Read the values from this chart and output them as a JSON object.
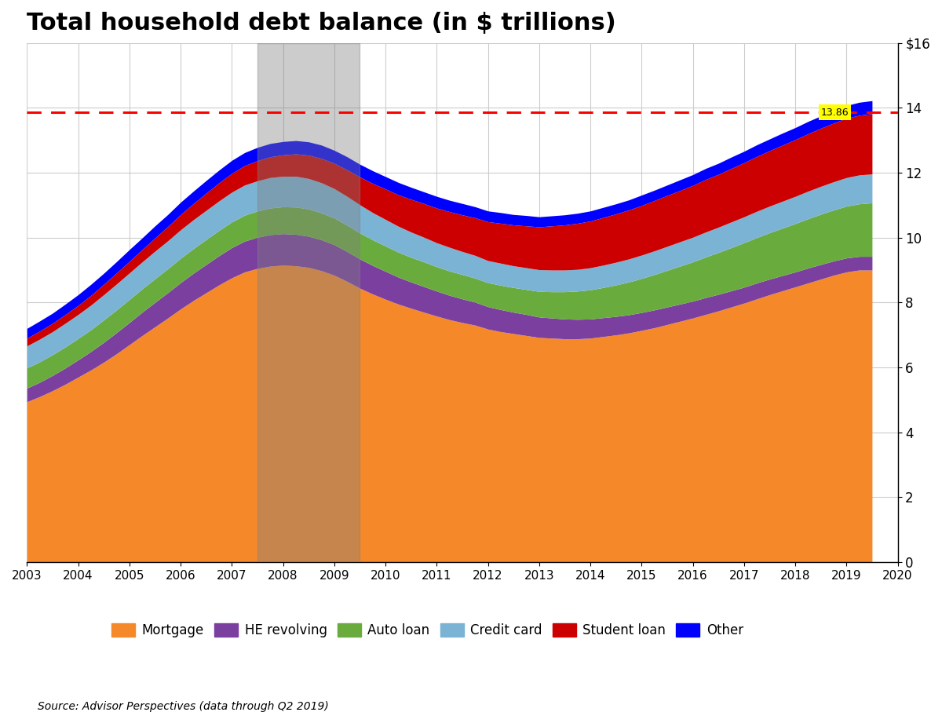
{
  "title": "Total household debt balance (in $ trillions)",
  "source": "Source: Advisor Perspectives (data through Q2 2019)",
  "dashed_line_value": 13.86,
  "dashed_line_label": "13.86",
  "recession_band1": [
    2007.5,
    2009.5
  ],
  "ylim": [
    0,
    16
  ],
  "yticks": [
    0,
    2,
    4,
    6,
    8,
    10,
    12,
    14,
    16
  ],
  "ytick_labels": [
    "0",
    "2",
    "4",
    "6",
    "8",
    "10",
    "12",
    "14",
    "$16"
  ],
  "colors": {
    "Mortgage": "#F5892A",
    "HE revolving": "#7B3FA0",
    "Auto loan": "#6AAB3E",
    "Credit card": "#7BB3D4",
    "Student loan": "#CC0000",
    "Other": "#0000FF"
  },
  "legend_labels": [
    "Mortgage",
    "HE revolving",
    "Auto loan",
    "Credit card",
    "Student loan",
    "Other"
  ],
  "years": [
    2003.0,
    2003.25,
    2003.5,
    2003.75,
    2004.0,
    2004.25,
    2004.5,
    2004.75,
    2005.0,
    2005.25,
    2005.5,
    2005.75,
    2006.0,
    2006.25,
    2006.5,
    2006.75,
    2007.0,
    2007.25,
    2007.5,
    2007.75,
    2008.0,
    2008.25,
    2008.5,
    2008.75,
    2009.0,
    2009.25,
    2009.5,
    2009.75,
    2010.0,
    2010.25,
    2010.5,
    2010.75,
    2011.0,
    2011.25,
    2011.5,
    2011.75,
    2012.0,
    2012.25,
    2012.5,
    2012.75,
    2013.0,
    2013.25,
    2013.5,
    2013.75,
    2014.0,
    2014.25,
    2014.5,
    2014.75,
    2015.0,
    2015.25,
    2015.5,
    2015.75,
    2016.0,
    2016.25,
    2016.5,
    2016.75,
    2017.0,
    2017.25,
    2017.5,
    2017.75,
    2018.0,
    2018.25,
    2018.5,
    2018.75,
    2019.0,
    2019.25,
    2019.5
  ],
  "mortgage": [
    4.94,
    5.1,
    5.28,
    5.48,
    5.7,
    5.92,
    6.16,
    6.42,
    6.7,
    6.98,
    7.25,
    7.52,
    7.8,
    8.06,
    8.3,
    8.54,
    8.76,
    8.94,
    9.05,
    9.12,
    9.15,
    9.13,
    9.08,
    8.98,
    8.84,
    8.65,
    8.44,
    8.26,
    8.1,
    7.95,
    7.82,
    7.7,
    7.58,
    7.47,
    7.38,
    7.3,
    7.18,
    7.1,
    7.04,
    6.98,
    6.92,
    6.9,
    6.88,
    6.88,
    6.9,
    6.95,
    7.0,
    7.06,
    7.14,
    7.22,
    7.32,
    7.42,
    7.52,
    7.63,
    7.74,
    7.86,
    7.98,
    8.11,
    8.24,
    8.36,
    8.48,
    8.6,
    8.72,
    8.84,
    8.94,
    9.0,
    9.0
  ],
  "he_revolving": [
    0.42,
    0.44,
    0.47,
    0.5,
    0.53,
    0.57,
    0.61,
    0.65,
    0.68,
    0.72,
    0.75,
    0.78,
    0.81,
    0.84,
    0.87,
    0.9,
    0.93,
    0.95,
    0.96,
    0.97,
    0.97,
    0.97,
    0.96,
    0.95,
    0.94,
    0.92,
    0.9,
    0.88,
    0.86,
    0.83,
    0.81,
    0.79,
    0.77,
    0.75,
    0.73,
    0.71,
    0.69,
    0.68,
    0.66,
    0.65,
    0.63,
    0.62,
    0.61,
    0.6,
    0.59,
    0.58,
    0.57,
    0.56,
    0.55,
    0.55,
    0.54,
    0.53,
    0.52,
    0.52,
    0.51,
    0.5,
    0.49,
    0.49,
    0.48,
    0.47,
    0.46,
    0.46,
    0.45,
    0.44,
    0.43,
    0.42,
    0.42
  ],
  "auto_loan": [
    0.62,
    0.63,
    0.64,
    0.65,
    0.66,
    0.67,
    0.69,
    0.7,
    0.71,
    0.72,
    0.73,
    0.74,
    0.75,
    0.76,
    0.77,
    0.78,
    0.79,
    0.8,
    0.81,
    0.82,
    0.83,
    0.84,
    0.84,
    0.83,
    0.82,
    0.81,
    0.8,
    0.79,
    0.78,
    0.77,
    0.76,
    0.76,
    0.75,
    0.75,
    0.75,
    0.74,
    0.74,
    0.75,
    0.76,
    0.77,
    0.79,
    0.81,
    0.84,
    0.87,
    0.9,
    0.93,
    0.97,
    1.01,
    1.05,
    1.09,
    1.13,
    1.17,
    1.21,
    1.25,
    1.29,
    1.33,
    1.37,
    1.4,
    1.43,
    1.46,
    1.49,
    1.52,
    1.55,
    1.57,
    1.6,
    1.62,
    1.65
  ],
  "credit_card": [
    0.68,
    0.7,
    0.71,
    0.73,
    0.74,
    0.76,
    0.78,
    0.8,
    0.82,
    0.83,
    0.85,
    0.86,
    0.88,
    0.89,
    0.9,
    0.91,
    0.92,
    0.93,
    0.93,
    0.94,
    0.94,
    0.95,
    0.94,
    0.93,
    0.91,
    0.89,
    0.87,
    0.84,
    0.82,
    0.8,
    0.78,
    0.76,
    0.74,
    0.73,
    0.71,
    0.7,
    0.68,
    0.68,
    0.67,
    0.67,
    0.67,
    0.67,
    0.67,
    0.67,
    0.68,
    0.69,
    0.7,
    0.71,
    0.72,
    0.73,
    0.74,
    0.75,
    0.76,
    0.77,
    0.78,
    0.79,
    0.8,
    0.81,
    0.82,
    0.83,
    0.84,
    0.85,
    0.86,
    0.87,
    0.88,
    0.89,
    0.89
  ],
  "student_loan": [
    0.24,
    0.25,
    0.26,
    0.27,
    0.28,
    0.3,
    0.32,
    0.34,
    0.36,
    0.38,
    0.41,
    0.44,
    0.47,
    0.5,
    0.53,
    0.56,
    0.58,
    0.6,
    0.62,
    0.64,
    0.66,
    0.69,
    0.72,
    0.75,
    0.78,
    0.82,
    0.86,
    0.9,
    0.94,
    0.97,
    1.01,
    1.04,
    1.07,
    1.1,
    1.13,
    1.16,
    1.2,
    1.23,
    1.26,
    1.29,
    1.32,
    1.36,
    1.39,
    1.42,
    1.44,
    1.47,
    1.49,
    1.51,
    1.53,
    1.55,
    1.57,
    1.58,
    1.6,
    1.62,
    1.63,
    1.65,
    1.67,
    1.69,
    1.71,
    1.73,
    1.75,
    1.77,
    1.79,
    1.81,
    1.83,
    1.84,
    1.86
  ],
  "other": [
    0.3,
    0.31,
    0.31,
    0.32,
    0.33,
    0.34,
    0.34,
    0.35,
    0.36,
    0.36,
    0.37,
    0.37,
    0.38,
    0.38,
    0.39,
    0.39,
    0.4,
    0.4,
    0.41,
    0.41,
    0.41,
    0.41,
    0.41,
    0.41,
    0.4,
    0.4,
    0.39,
    0.39,
    0.38,
    0.38,
    0.37,
    0.36,
    0.36,
    0.35,
    0.35,
    0.34,
    0.33,
    0.33,
    0.32,
    0.32,
    0.31,
    0.31,
    0.31,
    0.31,
    0.31,
    0.31,
    0.31,
    0.31,
    0.32,
    0.32,
    0.32,
    0.33,
    0.33,
    0.34,
    0.34,
    0.35,
    0.35,
    0.36,
    0.36,
    0.37,
    0.37,
    0.38,
    0.38,
    0.39,
    0.39,
    0.4,
    0.4
  ]
}
